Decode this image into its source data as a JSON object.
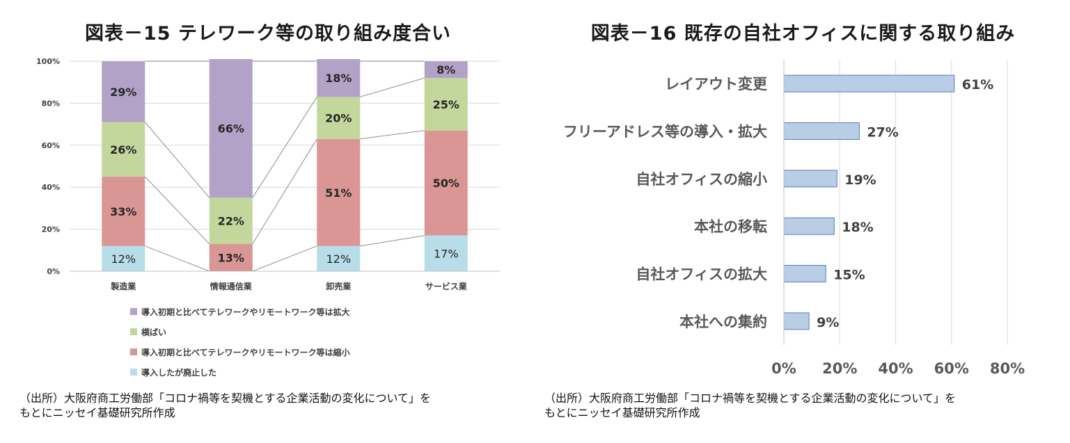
{
  "charts": [
    {
      "title": "図表－15 テレワーク等の取り組み度合い",
      "source_line1": "（出所）大阪府商工労働部「コロナ禍等を契機とする企業活動の変化について」を",
      "source_line2": "もとにニッセイ基礎研究所作成"
    },
    {
      "title": "図表－16 既存の自社オフィスに関する取り組み",
      "source_line1": "（出所）大阪府商工労働部「コロナ禍等を契機とする企業活動の変化について」を",
      "source_line2": "もとにニッセイ基礎研究所作成"
    }
  ],
  "chart_data": [
    {
      "type": "bar",
      "stacked": true,
      "percent": true,
      "title": "図表－15 テレワーク等の取り組み度合い",
      "categories": [
        "製造業",
        "情報通信業",
        "卸売業",
        "サービス業"
      ],
      "series": [
        {
          "name": "導入したが廃止した",
          "color": "#b7dde8",
          "values": [
            12,
            0,
            12,
            17
          ],
          "labels": [
            "12%",
            "",
            "12%",
            "17%"
          ]
        },
        {
          "name": "導入初期と比べてテレワークやリモートワーク等は縮小",
          "color": "#d99694",
          "values": [
            33,
            13,
            51,
            50
          ],
          "labels": [
            "33%",
            "13%",
            "51%",
            "50%"
          ]
        },
        {
          "name": "横ばい",
          "color": "#c3d69b",
          "values": [
            26,
            22,
            20,
            25
          ],
          "labels": [
            "26%",
            "22%",
            "20%",
            "25%"
          ]
        },
        {
          "name": "導入初期と比べてテレワークやリモートワーク等は拡大",
          "color": "#b3a2c7",
          "values": [
            29,
            66,
            18,
            8
          ],
          "labels": [
            "29%",
            "66%",
            "18%",
            "8%"
          ]
        }
      ],
      "ylim": [
        0,
        100
      ],
      "yticks": [
        "0%",
        "20%",
        "40%",
        "60%",
        "80%",
        "100%"
      ],
      "legend_position": "bottom",
      "series_lines": true
    },
    {
      "type": "bar",
      "orientation": "horizontal",
      "title": "図表－16 既存の自社オフィスに関する取り組み",
      "categories": [
        "レイアウト変更",
        "フリーアドレス等の導入・拡大",
        "自社オフィスの縮小",
        "本社の移転",
        "自社オフィスの拡大",
        "本社への集約"
      ],
      "values": [
        61,
        27,
        19,
        18,
        15,
        9
      ],
      "labels": [
        "61%",
        "27%",
        "19%",
        "18%",
        "15%",
        "9%"
      ],
      "color": "#b9cde5",
      "xlim": [
        0,
        80
      ],
      "xticks": [
        "0%",
        "20%",
        "40%",
        "60%",
        "80%"
      ]
    }
  ]
}
